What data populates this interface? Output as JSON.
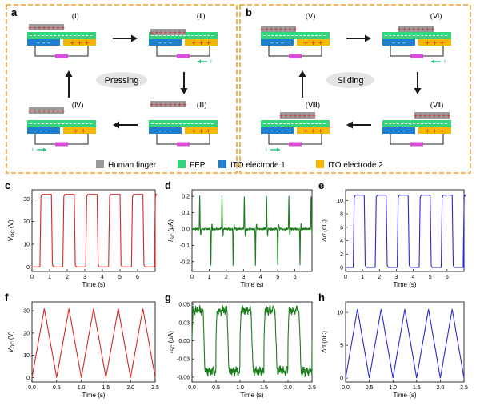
{
  "diagram_a": {
    "label": "a",
    "center_label": "Pressing",
    "states": [
      "(Ⅰ)",
      "(Ⅱ)",
      "(Ⅲ)",
      "(Ⅳ)"
    ]
  },
  "diagram_b": {
    "label": "b",
    "center_label": "Sliding",
    "states": [
      "(Ⅴ)",
      "(Ⅵ)",
      "(Ⅶ)",
      "(Ⅷ)"
    ]
  },
  "legend": {
    "items": [
      {
        "label": "Human finger",
        "color": "#9a9a9a"
      },
      {
        "label": "FEP",
        "color": "#33d47a"
      },
      {
        "label": "ITO electrode 1",
        "color": "#1f7fcf"
      },
      {
        "label": "ITO electrode 2",
        "color": "#f5b800"
      }
    ]
  },
  "colors": {
    "frame": "#f0a030",
    "red": "#d62828",
    "green": "#1e7d1e",
    "blue": "#2a2ad0",
    "arrow": "#1a1a1a",
    "current": "#22c07a"
  },
  "chart_data": [
    {
      "id": "c",
      "panel": "c",
      "type": "line",
      "color": "#d62828",
      "shape": "square",
      "xlabel": "Time (s)",
      "ylabel_main": "V",
      "ylabel_sub": "OC",
      "ylabel_unit": "(V)",
      "xlim": [
        0,
        7
      ],
      "ylim": [
        -2,
        34
      ],
      "xticks": [
        0,
        1,
        2,
        3,
        4,
        5,
        6
      ],
      "yticks": [
        0,
        10,
        20,
        30
      ],
      "ytick_labels": [
        "0",
        "10",
        "20",
        "30"
      ],
      "period": 1.3,
      "phase": 0.45,
      "duty": 0.5,
      "high": 32,
      "low": 0,
      "t_end": 7
    },
    {
      "id": "d",
      "panel": "d",
      "type": "line",
      "color": "#1e7d1e",
      "shape": "spikes",
      "xlabel": "Time (s)",
      "ylabel_main": "I",
      "ylabel_sub": "SC",
      "ylabel_unit": "(μA)",
      "xlim": [
        0,
        7
      ],
      "ylim": [
        -0.26,
        0.24
      ],
      "xticks": [
        0,
        1,
        2,
        3,
        4,
        5,
        6
      ],
      "yticks": [
        -0.2,
        -0.1,
        0.0,
        0.1,
        0.2
      ],
      "ytick_labels": [
        "-0.2",
        "-0.1",
        "0.0",
        "0.1",
        "0.2"
      ],
      "period": 1.3,
      "phase": 0.45,
      "duty": 0.5,
      "high": 0.2,
      "low": -0.22,
      "t_end": 7
    },
    {
      "id": "e",
      "panel": "e",
      "type": "line",
      "color": "#2a2ad0",
      "shape": "square",
      "xlabel": "Time (s)",
      "ylabel_main": "Δσ",
      "ylabel_sub": "",
      "ylabel_unit": "(nC)",
      "xlim": [
        0,
        7
      ],
      "ylim": [
        -0.6,
        11.6
      ],
      "xticks": [
        0,
        1,
        2,
        3,
        4,
        5,
        6
      ],
      "yticks": [
        0,
        2,
        4,
        6,
        8,
        10
      ],
      "ytick_labels": [
        "0",
        "2",
        "4",
        "6",
        "8",
        "10"
      ],
      "period": 1.3,
      "phase": 0.45,
      "duty": 0.5,
      "high": 10.8,
      "low": 0,
      "t_end": 7
    },
    {
      "id": "f",
      "panel": "f",
      "type": "line",
      "color": "#d62828",
      "shape": "triangle",
      "xlabel": "Time (s)",
      "ylabel_main": "V",
      "ylabel_sub": "OC",
      "ylabel_unit": "(V)",
      "xlim": [
        0,
        2.5
      ],
      "ylim": [
        -2,
        34
      ],
      "xticks": [
        0,
        0.5,
        1.0,
        1.5,
        2.0,
        2.5
      ],
      "xtick_labels": [
        "0.0",
        "0.5",
        "1.0",
        "1.5",
        "2.0",
        "2.5"
      ],
      "yticks": [
        0,
        10,
        20,
        30
      ],
      "ytick_labels": [
        "0",
        "10",
        "20",
        "30"
      ],
      "period": 0.5,
      "phase": 0.25,
      "high": 31,
      "low": 0,
      "t_end": 2.5
    },
    {
      "id": "g",
      "panel": "g",
      "type": "line",
      "color": "#1e7d1e",
      "shape": "noisy-square",
      "xlabel": "Time (s)",
      "ylabel_main": "I",
      "ylabel_sub": "SC",
      "ylabel_unit": "(μA)",
      "xlim": [
        0,
        2.5
      ],
      "ylim": [
        -0.068,
        0.064
      ],
      "xticks": [
        0,
        0.5,
        1.0,
        1.5,
        2.0,
        2.5
      ],
      "xtick_labels": [
        "0.0",
        "0.5",
        "1.0",
        "1.5",
        "2.0",
        "2.5"
      ],
      "yticks": [
        -0.06,
        -0.03,
        0.0,
        0.03,
        0.06
      ],
      "ytick_labels": [
        "-0.06",
        "-0.03",
        "0.00",
        "0.03",
        "0.06"
      ],
      "period": 0.5,
      "phase": 0.25,
      "duty": 0.5,
      "high": 0.05,
      "low": -0.05,
      "t_end": 2.5
    },
    {
      "id": "h",
      "panel": "h",
      "type": "line",
      "color": "#2a2ad0",
      "shape": "triangle",
      "xlabel": "Time (s)",
      "ylabel_main": "Δσ",
      "ylabel_sub": "",
      "ylabel_unit": "(nC)",
      "xlim": [
        0,
        2.5
      ],
      "ylim": [
        -0.6,
        11.6
      ],
      "xticks": [
        0,
        0.5,
        1.0,
        1.5,
        2.0,
        2.5
      ],
      "xtick_labels": [
        "0.0",
        "0.5",
        "1.0",
        "1.5",
        "2.0",
        "2.5"
      ],
      "yticks": [
        0,
        5,
        10
      ],
      "ytick_labels": [
        "0",
        "5",
        "10"
      ],
      "period": 0.5,
      "phase": 0.25,
      "high": 10.5,
      "low": 0,
      "t_end": 2.5
    }
  ]
}
